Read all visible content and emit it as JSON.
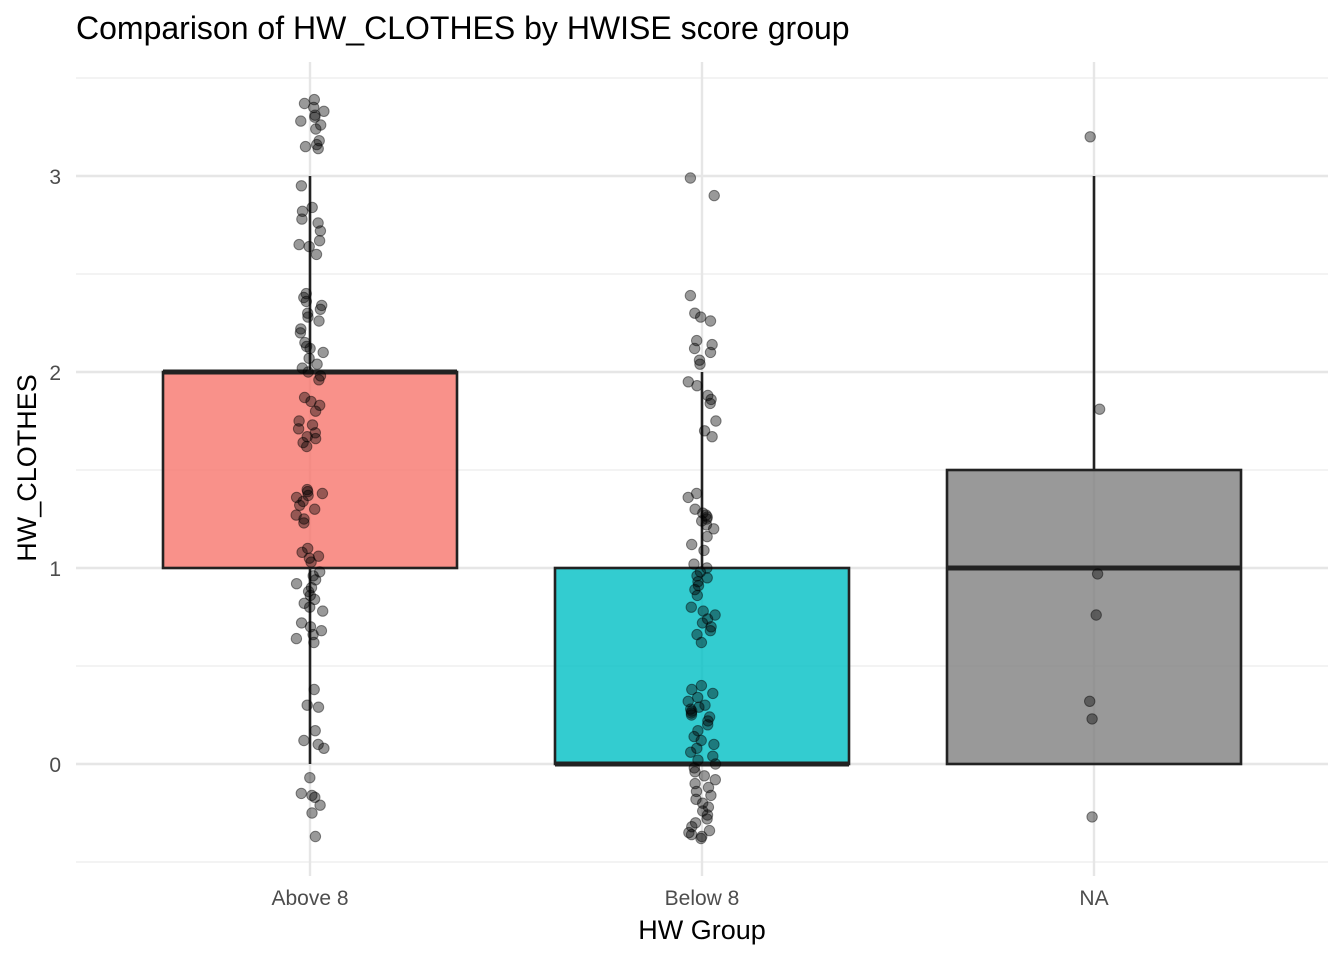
{
  "chart_data": {
    "type": "box",
    "title": "Comparison of HW_CLOTHES by HWISE score group",
    "xlabel": "HW Group",
    "ylabel": "HW_CLOTHES",
    "categories": [
      "Above 8",
      "Below 8",
      "NA"
    ],
    "ylim": [
      -0.5,
      3.5
    ],
    "yticks": [
      0,
      1,
      2,
      3
    ],
    "grid": true,
    "legend": "none",
    "boxes": [
      {
        "category": "Above 8",
        "min": 0,
        "q1": 1,
        "median": 2,
        "q3": 2,
        "max": 3,
        "color": "#F8766D"
      },
      {
        "category": "Below 8",
        "min": 0,
        "q1": 0,
        "median": 0,
        "q3": 1,
        "max": 2,
        "color": "#00BFC4"
      },
      {
        "category": "NA",
        "min": 0,
        "q1": 0,
        "median": 1,
        "q3": 1.5,
        "max": 3,
        "color": "#7F7F7F"
      }
    ],
    "jitter_points": [
      {
        "category": "Above 8",
        "values": [
          3.39,
          3.37,
          3.35,
          3.33,
          3.31,
          3.3,
          3.28,
          3.26,
          3.24,
          3.18,
          3.16,
          3.15,
          3.14,
          2.95,
          2.84,
          2.82,
          2.78,
          2.76,
          2.72,
          2.67,
          2.65,
          2.64,
          2.6,
          2.4,
          2.38,
          2.36,
          2.34,
          2.32,
          2.3,
          2.28,
          2.26,
          2.22,
          2.2,
          2.15,
          2.13,
          2.12,
          2.1,
          2.07,
          2.04,
          2.02,
          2.0,
          1.98,
          1.96,
          1.87,
          1.85,
          1.83,
          1.8,
          1.75,
          1.73,
          1.71,
          1.69,
          1.67,
          1.66,
          1.64,
          1.62,
          1.4,
          1.39,
          1.38,
          1.37,
          1.36,
          1.34,
          1.32,
          1.3,
          1.27,
          1.25,
          1.23,
          1.1,
          1.08,
          1.06,
          1.05,
          1.03,
          0.98,
          0.96,
          0.94,
          0.92,
          0.9,
          0.88,
          0.86,
          0.84,
          0.82,
          0.8,
          0.78,
          0.72,
          0.7,
          0.68,
          0.66,
          0.64,
          0.62,
          0.38,
          0.3,
          0.29,
          0.17,
          0.12,
          0.1,
          0.08,
          -0.07,
          -0.15,
          -0.16,
          -0.17,
          -0.21,
          -0.25,
          -0.37
        ]
      },
      {
        "category": "Below 8",
        "values": [
          2.99,
          2.9,
          2.39,
          2.3,
          2.28,
          2.26,
          2.16,
          2.14,
          2.12,
          2.1,
          2.06,
          2.04,
          1.95,
          1.93,
          1.88,
          1.86,
          1.84,
          1.75,
          1.7,
          1.67,
          1.38,
          1.36,
          1.3,
          1.28,
          1.27,
          1.26,
          1.25,
          1.24,
          1.22,
          1.2,
          1.16,
          1.12,
          1.09,
          1.02,
          1.0,
          0.98,
          0.96,
          0.95,
          0.93,
          0.91,
          0.89,
          0.86,
          0.8,
          0.78,
          0.76,
          0.74,
          0.72,
          0.7,
          0.68,
          0.66,
          0.62,
          0.4,
          0.38,
          0.36,
          0.34,
          0.32,
          0.3,
          0.29,
          0.28,
          0.27,
          0.26,
          0.25,
          0.24,
          0.22,
          0.2,
          0.17,
          0.14,
          0.12,
          0.1,
          0.08,
          0.06,
          0.04,
          0.02,
          0.0,
          -0.02,
          -0.04,
          -0.06,
          -0.08,
          -0.1,
          -0.12,
          -0.14,
          -0.16,
          -0.18,
          -0.2,
          -0.22,
          -0.24,
          -0.26,
          -0.28,
          -0.3,
          -0.32,
          -0.34,
          -0.35,
          -0.36,
          -0.37,
          -0.38
        ]
      },
      {
        "category": "NA",
        "values": [
          3.2,
          1.81,
          0.97,
          0.76,
          0.32,
          0.23,
          -0.27
        ]
      }
    ]
  }
}
